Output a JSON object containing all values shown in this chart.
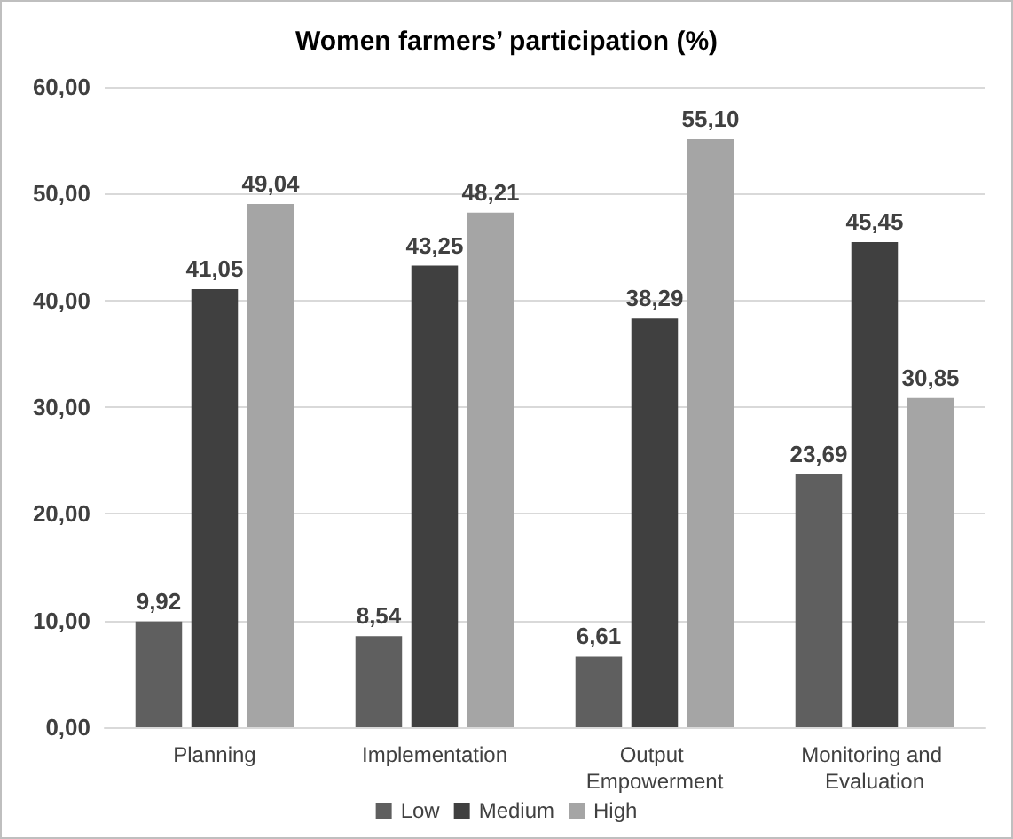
{
  "chart_data": {
    "type": "bar",
    "title": "Women farmers’ participation (%)",
    "categories": [
      "Planning",
      "Implementation",
      "Output Empowerment",
      "Monitoring and Evaluation"
    ],
    "series": [
      {
        "name": "Low",
        "color": "#5f5f5f",
        "values": [
          9.92,
          8.54,
          6.61,
          23.69
        ],
        "value_labels": [
          "9,92",
          "8,54",
          "6,61",
          "23,69"
        ]
      },
      {
        "name": "Medium",
        "color": "#404040",
        "values": [
          41.05,
          43.25,
          38.29,
          45.45
        ],
        "value_labels": [
          "41,05",
          "43,25",
          "38,29",
          "45,45"
        ]
      },
      {
        "name": "High",
        "color": "#a5a5a5",
        "values": [
          49.04,
          48.21,
          55.1,
          30.85
        ],
        "value_labels": [
          "49,04",
          "48,21",
          "55,10",
          "30,85"
        ]
      }
    ],
    "ylim": [
      0,
      60
    ],
    "yticks": [
      {
        "value": 0,
        "label": "0,00"
      },
      {
        "value": 10,
        "label": "10,00"
      },
      {
        "value": 20,
        "label": "20,00"
      },
      {
        "value": 30,
        "label": "30,00"
      },
      {
        "value": 40,
        "label": "40,00"
      },
      {
        "value": 50,
        "label": "50,00"
      },
      {
        "value": 60,
        "label": "60,00"
      }
    ],
    "grid": "y",
    "legend": "bottom"
  }
}
